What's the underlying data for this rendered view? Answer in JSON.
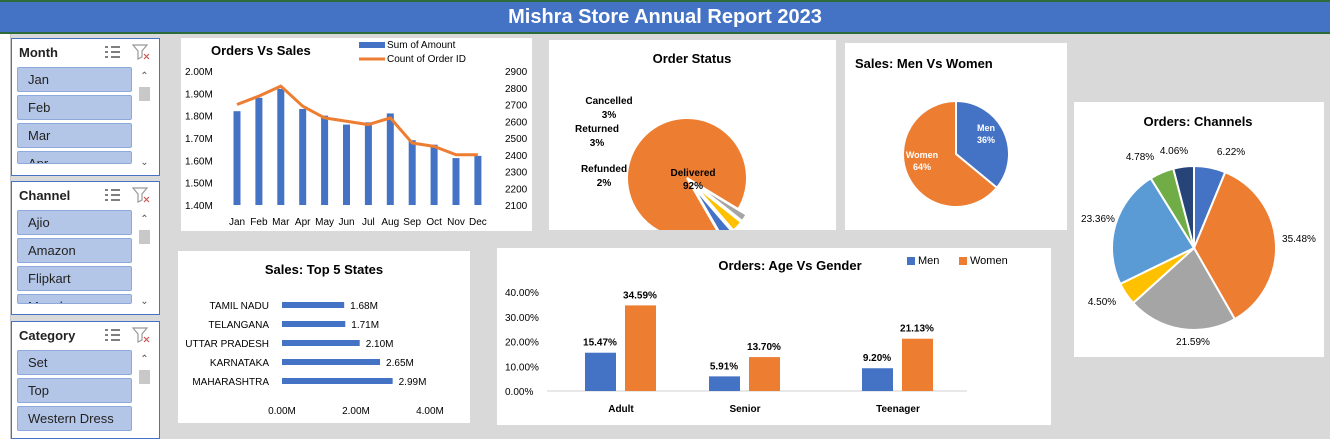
{
  "header": {
    "title": "Mishra Store Annual Report 2023"
  },
  "slicers": [
    {
      "title": "Month",
      "items": [
        "Jan",
        "Feb",
        "Mar",
        "Apr"
      ]
    },
    {
      "title": "Channel",
      "items": [
        "Ajio",
        "Amazon",
        "Flipkart",
        "Meesho"
      ]
    },
    {
      "title": "Category",
      "items": [
        "Set",
        "Top",
        "Western Dress"
      ]
    }
  ],
  "charts": {
    "orders_vs_sales": {
      "type": "bar",
      "title": "Orders Vs Sales",
      "categories": [
        "Jan",
        "Feb",
        "Mar",
        "Apr",
        "May",
        "Jun",
        "Jul",
        "Aug",
        "Sep",
        "Oct",
        "Nov",
        "Dec"
      ],
      "series": [
        {
          "name": "Sum of Amount",
          "type": "bar",
          "axis": "left",
          "values": [
            1.82,
            1.88,
            1.92,
            1.83,
            1.8,
            1.76,
            1.77,
            1.81,
            1.69,
            1.67,
            1.61,
            1.62
          ]
        },
        {
          "name": "Count of Order ID",
          "type": "line",
          "axis": "right",
          "values": [
            2700,
            2750,
            2810,
            2690,
            2620,
            2600,
            2580,
            2620,
            2470,
            2450,
            2400,
            2400
          ]
        }
      ],
      "left_axis": {
        "ticks": [
          "2.00M",
          "1.90M",
          "1.80M",
          "1.70M",
          "1.60M",
          "1.50M",
          "1.40M"
        ],
        "min": 1.4,
        "max": 2.0
      },
      "right_axis": {
        "ticks": [
          "2900",
          "2800",
          "2700",
          "2600",
          "2500",
          "2400",
          "2300",
          "2200",
          "2100"
        ],
        "min": 2100,
        "max": 2900
      },
      "colors": {
        "bar": "#4472c4",
        "line": "#ed7d31"
      }
    },
    "order_status": {
      "type": "pie",
      "title": "Order Status",
      "slices": [
        {
          "label": "Delivered",
          "pct": "92%",
          "value": 92,
          "color": "#ed7d31"
        },
        {
          "label": "Refunded",
          "pct": "2%",
          "value": 2,
          "color": "#a5a5a5"
        },
        {
          "label": "Returned",
          "pct": "3%",
          "value": 3,
          "color": "#ffc000"
        },
        {
          "label": "Cancelled",
          "pct": "3%",
          "value": 3,
          "color": "#4472c4"
        }
      ]
    },
    "men_vs_women": {
      "type": "pie",
      "title": "Sales: Men Vs Women",
      "slices": [
        {
          "label": "Men",
          "pct": "36%",
          "value": 36,
          "color": "#4472c4"
        },
        {
          "label": "Women",
          "pct": "64%",
          "value": 64,
          "color": "#ed7d31"
        }
      ]
    },
    "channels": {
      "type": "pie",
      "title": "Orders: Channels",
      "slices": [
        {
          "pct": "6.22%",
          "value": 6.22,
          "color": "#4472c4"
        },
        {
          "pct": "35.48%",
          "value": 35.48,
          "color": "#ed7d31"
        },
        {
          "pct": "21.59%",
          "value": 21.59,
          "color": "#a5a5a5"
        },
        {
          "pct": "4.50%",
          "value": 4.5,
          "color": "#ffc000"
        },
        {
          "pct": "23.36%",
          "value": 23.36,
          "color": "#5b9bd5"
        },
        {
          "pct": "4.78%",
          "value": 4.78,
          "color": "#70ad47"
        },
        {
          "pct": "4.06%",
          "value": 4.06,
          "color": "#264478"
        }
      ]
    },
    "top_states": {
      "type": "bar",
      "title": "Sales: Top 5 States",
      "categories": [
        "TAMIL NADU",
        "TELANGANA",
        "UTTAR PRADESH",
        "KARNATAKA",
        "MAHARASHTRA"
      ],
      "values": [
        1.68,
        1.71,
        2.1,
        2.65,
        2.99
      ],
      "value_labels": [
        "1.68M",
        "1.71M",
        "2.10M",
        "2.65M",
        "2.99M"
      ],
      "x_ticks": [
        "0.00M",
        "2.00M",
        "4.00M"
      ],
      "xlim": [
        0,
        4
      ],
      "color": "#4472c4"
    },
    "age_vs_gender": {
      "type": "bar",
      "title": "Orders: Age Vs Gender",
      "categories": [
        "Adult",
        "Senior",
        "Teenager"
      ],
      "series": [
        {
          "name": "Men",
          "values": [
            15.47,
            5.91,
            9.2
          ],
          "labels": [
            "15.47%",
            "5.91%",
            "9.20%"
          ],
          "color": "#4472c4"
        },
        {
          "name": "Women",
          "values": [
            34.59,
            13.7,
            21.13
          ],
          "labels": [
            "34.59%",
            "13.70%",
            "21.13%"
          ],
          "color": "#ed7d31"
        }
      ],
      "y_ticks": [
        "40.00%",
        "30.00%",
        "20.00%",
        "10.00%",
        "0.00%"
      ],
      "ylim": [
        0,
        40
      ]
    }
  },
  "chart_data": [
    {
      "type": "bar",
      "title": "Orders Vs Sales",
      "categories": [
        "Jan",
        "Feb",
        "Mar",
        "Apr",
        "May",
        "Jun",
        "Jul",
        "Aug",
        "Sep",
        "Oct",
        "Nov",
        "Dec"
      ],
      "series": [
        {
          "name": "Sum of Amount",
          "values": [
            1.82,
            1.88,
            1.92,
            1.83,
            1.8,
            1.76,
            1.77,
            1.81,
            1.69,
            1.67,
            1.61,
            1.62
          ]
        },
        {
          "name": "Count of Order ID",
          "values": [
            2700,
            2750,
            2810,
            2690,
            2620,
            2600,
            2580,
            2620,
            2470,
            2450,
            2400,
            2400
          ]
        }
      ],
      "ylim": [
        1.4,
        2.0
      ],
      "y2lim": [
        2100,
        2900
      ]
    },
    {
      "type": "pie",
      "title": "Order Status",
      "labels": [
        "Delivered",
        "Refunded",
        "Returned",
        "Cancelled"
      ],
      "values": [
        92,
        2,
        3,
        3
      ]
    },
    {
      "type": "pie",
      "title": "Sales: Men Vs Women",
      "labels": [
        "Men",
        "Women"
      ],
      "values": [
        36,
        64
      ]
    },
    {
      "type": "pie",
      "title": "Orders: Channels",
      "values": [
        6.22,
        35.48,
        21.59,
        4.5,
        23.36,
        4.78,
        4.06
      ]
    },
    {
      "type": "bar",
      "title": "Sales: Top 5 States",
      "categories": [
        "TAMIL NADU",
        "TELANGANA",
        "UTTAR PRADESH",
        "KARNATAKA",
        "MAHARASHTRA"
      ],
      "values": [
        1.68,
        1.71,
        2.1,
        2.65,
        2.99
      ],
      "xlim": [
        0,
        4
      ]
    },
    {
      "type": "bar",
      "title": "Orders: Age Vs Gender",
      "categories": [
        "Adult",
        "Senior",
        "Teenager"
      ],
      "series": [
        {
          "name": "Men",
          "values": [
            15.47,
            5.91,
            9.2
          ]
        },
        {
          "name": "Women",
          "values": [
            34.59,
            13.7,
            21.13
          ]
        }
      ],
      "ylim": [
        0,
        40
      ]
    }
  ]
}
